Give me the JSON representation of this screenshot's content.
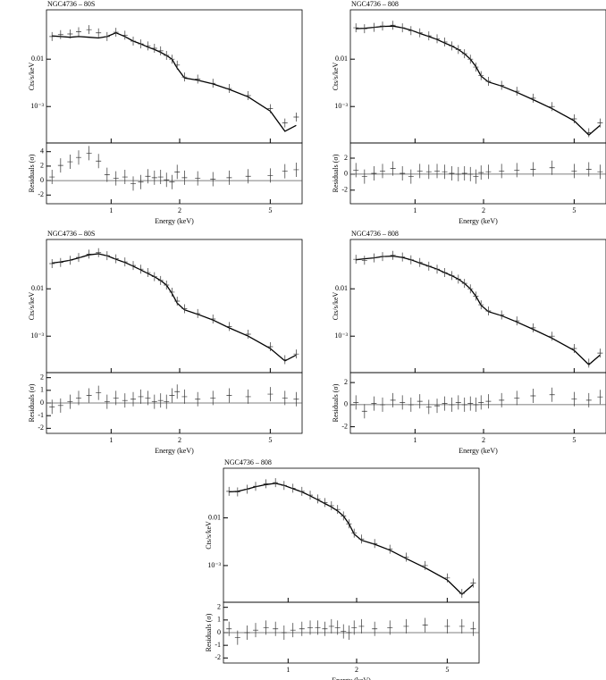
{
  "chart_data": [
    {
      "type": "spectrum",
      "title": "NGC4736 – 80S",
      "xlabel": "Energy (keV)",
      "ylabel": "Cts/s/keV",
      "residual_ylabel": "Residuals (σ)",
      "xlog": true,
      "ylog": true,
      "xlim": [
        0.52,
        6.9
      ],
      "xticks": [
        1,
        2,
        5
      ],
      "ylim": [
        0.00017,
        0.11
      ],
      "yticks": [
        {
          "value": 0.001,
          "label": "10⁻³"
        },
        0.01
      ],
      "residual_ylim": [
        -3.2,
        5.2
      ],
      "residual_yticks": [
        -2,
        0,
        2,
        4
      ],
      "x": [
        0.55,
        0.6,
        0.66,
        0.72,
        0.8,
        0.88,
        0.96,
        1.05,
        1.15,
        1.25,
        1.35,
        1.45,
        1.55,
        1.65,
        1.75,
        1.85,
        1.95,
        2.1,
        2.4,
        2.8,
        3.3,
        4.0,
        5.0,
        5.8,
        6.5
      ],
      "counts": [
        0.03,
        0.033,
        0.034,
        0.038,
        0.042,
        0.036,
        0.03,
        0.037,
        0.032,
        0.024,
        0.021,
        0.019,
        0.017,
        0.015,
        0.012,
        0.01,
        0.0075,
        0.0042,
        0.0038,
        0.0031,
        0.0024,
        0.0017,
        0.0009,
        0.00045,
        0.0006
      ],
      "model": [
        0.031,
        0.03,
        0.029,
        0.03,
        0.029,
        0.028,
        0.03,
        0.036,
        0.03,
        0.024,
        0.021,
        0.018,
        0.016,
        0.014,
        0.012,
        0.01,
        0.0065,
        0.004,
        0.0036,
        0.003,
        0.0023,
        0.0016,
        0.0008,
        0.0003,
        0.0004
      ],
      "residuals": [
        0.5,
        2.1,
        2.6,
        3.2,
        3.8,
        2.7,
        0.8,
        0.3,
        0.5,
        -0.4,
        -0.2,
        0.6,
        0.4,
        0.5,
        0.1,
        -0.2,
        1.2,
        0.4,
        0.3,
        0.2,
        0.4,
        0.6,
        0.7,
        1.3,
        1.5
      ]
    },
    {
      "type": "spectrum",
      "title": "NGC4736 – 808",
      "xlabel": "Energy (keV)",
      "ylabel": "Cts/s/keV",
      "residual_ylabel": "Residuals (σ)",
      "xlog": true,
      "ylog": true,
      "xlim": [
        0.52,
        6.9
      ],
      "xticks": [
        1,
        2,
        5
      ],
      "ylim": [
        0.00017,
        0.11
      ],
      "yticks": [
        {
          "value": 0.001,
          "label": "10⁻³"
        },
        0.01
      ],
      "residual_ylim": [
        -3.7,
        3.9
      ],
      "residual_yticks": [
        -2,
        0,
        2
      ],
      "x": [
        0.55,
        0.6,
        0.66,
        0.72,
        0.8,
        0.88,
        0.96,
        1.05,
        1.15,
        1.25,
        1.35,
        1.45,
        1.55,
        1.65,
        1.75,
        1.85,
        1.95,
        2.1,
        2.4,
        2.8,
        3.3,
        4.0,
        5.0,
        5.8,
        6.5
      ],
      "counts": [
        0.046,
        0.044,
        0.047,
        0.05,
        0.052,
        0.046,
        0.04,
        0.036,
        0.031,
        0.027,
        0.023,
        0.019,
        0.016,
        0.013,
        0.01,
        0.0068,
        0.0045,
        0.0034,
        0.0028,
        0.0021,
        0.0015,
        0.001,
        0.00055,
        0.00028,
        0.00045
      ],
      "model": [
        0.044,
        0.045,
        0.047,
        0.049,
        0.05,
        0.046,
        0.041,
        0.035,
        0.03,
        0.026,
        0.022,
        0.019,
        0.016,
        0.013,
        0.01,
        0.007,
        0.0044,
        0.0033,
        0.0027,
        0.002,
        0.0014,
        0.0009,
        0.0005,
        0.00025,
        0.0004
      ],
      "residuals": [
        0.5,
        -0.3,
        0.1,
        0.4,
        0.7,
        0.1,
        -0.3,
        0.4,
        0.3,
        0.4,
        0.3,
        0.1,
        0,
        0.1,
        0,
        -0.3,
        0.2,
        0.3,
        0.4,
        0.5,
        0.6,
        0.8,
        0.4,
        0.6,
        0.3
      ]
    },
    {
      "type": "spectrum",
      "title": "NGC4736 – 80S",
      "xlabel": "Energy (keV)",
      "ylabel": "Cts/s/keV",
      "residual_ylabel": "Residuals (σ)",
      "xlog": true,
      "ylog": true,
      "xlim": [
        0.52,
        6.9
      ],
      "xticks": [
        1,
        2,
        5
      ],
      "ylim": [
        0.00017,
        0.11
      ],
      "yticks": [
        {
          "value": 0.001,
          "label": "10⁻³"
        },
        0.01
      ],
      "residual_ylim": [
        -2.4,
        2.4
      ],
      "residual_yticks": [
        -2,
        -1,
        0,
        1,
        2
      ],
      "x": [
        0.55,
        0.6,
        0.66,
        0.72,
        0.8,
        0.88,
        0.96,
        1.05,
        1.15,
        1.25,
        1.35,
        1.45,
        1.55,
        1.65,
        1.75,
        1.85,
        1.95,
        2.1,
        2.4,
        2.8,
        3.3,
        4.0,
        5.0,
        5.8,
        6.5
      ],
      "counts": [
        0.034,
        0.036,
        0.04,
        0.046,
        0.054,
        0.058,
        0.05,
        0.043,
        0.037,
        0.031,
        0.026,
        0.022,
        0.018,
        0.015,
        0.012,
        0.0085,
        0.0055,
        0.0038,
        0.003,
        0.0023,
        0.0016,
        0.0011,
        0.0006,
        0.00032,
        0.00042
      ],
      "model": [
        0.035,
        0.037,
        0.04,
        0.045,
        0.052,
        0.055,
        0.05,
        0.042,
        0.036,
        0.03,
        0.025,
        0.021,
        0.018,
        0.015,
        0.012,
        0.008,
        0.005,
        0.0036,
        0.0029,
        0.0022,
        0.0015,
        0.001,
        0.00055,
        0.0003,
        0.0004
      ],
      "residuals": [
        -0.3,
        -0.2,
        0.1,
        0.4,
        0.6,
        0.8,
        0.1,
        0.4,
        0.2,
        0.3,
        0.5,
        0.4,
        0.1,
        0.2,
        0.1,
        0.6,
        0.9,
        0.5,
        0.3,
        0.4,
        0.6,
        0.5,
        0.7,
        0.4,
        0.3
      ]
    },
    {
      "type": "spectrum",
      "title": "NGC4736 – 808",
      "xlabel": "Energy (keV)",
      "ylabel": "Cts/s/keV",
      "residual_ylabel": "Residuals (σ)",
      "xlog": true,
      "ylog": true,
      "xlim": [
        0.52,
        6.9
      ],
      "xticks": [
        1,
        2,
        5
      ],
      "ylim": [
        0.00017,
        0.11
      ],
      "yticks": [
        {
          "value": 0.001,
          "label": "10⁻³"
        },
        0.01
      ],
      "residual_ylim": [
        -2.6,
        2.9
      ],
      "residual_yticks": [
        -2,
        0,
        2
      ],
      "x": [
        0.55,
        0.6,
        0.66,
        0.72,
        0.8,
        0.88,
        0.96,
        1.05,
        1.15,
        1.25,
        1.35,
        1.45,
        1.55,
        1.65,
        1.75,
        1.85,
        1.95,
        2.1,
        2.4,
        2.8,
        3.3,
        4.0,
        5.0,
        5.8,
        6.5
      ],
      "counts": [
        0.042,
        0.04,
        0.045,
        0.048,
        0.051,
        0.047,
        0.041,
        0.036,
        0.03,
        0.026,
        0.022,
        0.019,
        0.016,
        0.013,
        0.01,
        0.007,
        0.0046,
        0.0034,
        0.0028,
        0.0021,
        0.0015,
        0.001,
        0.00055,
        0.00027,
        0.00044
      ],
      "model": [
        0.041,
        0.043,
        0.045,
        0.048,
        0.049,
        0.046,
        0.041,
        0.035,
        0.03,
        0.026,
        0.022,
        0.019,
        0.016,
        0.013,
        0.01,
        0.007,
        0.0045,
        0.0033,
        0.0027,
        0.002,
        0.0014,
        0.0009,
        0.0005,
        0.00025,
        0.0004
      ],
      "residuals": [
        0.2,
        -0.6,
        0.1,
        0,
        0.4,
        0.2,
        0,
        0.3,
        -0.2,
        -0.1,
        0.1,
        0,
        0.2,
        0,
        0.1,
        0,
        0.2,
        0.3,
        0.4,
        0.6,
        0.8,
        0.9,
        0.5,
        0.4,
        0.7
      ]
    },
    {
      "type": "spectrum",
      "title": "NGC4736 – 808",
      "xlabel": "Energy (keV)",
      "ylabel": "Cts/s/keV",
      "residual_ylabel": "Residuals (σ)",
      "xlog": true,
      "ylog": true,
      "xlim": [
        0.52,
        6.9
      ],
      "xticks": [
        1,
        2,
        5
      ],
      "ylim": [
        0.00017,
        0.11
      ],
      "yticks": [
        {
          "value": 0.001,
          "label": "10⁻³"
        },
        0.01
      ],
      "residual_ylim": [
        -2.4,
        2.4
      ],
      "residual_yticks": [
        -2,
        -1,
        0,
        1,
        2
      ],
      "x": [
        0.55,
        0.6,
        0.66,
        0.72,
        0.8,
        0.88,
        0.96,
        1.05,
        1.15,
        1.25,
        1.35,
        1.45,
        1.55,
        1.65,
        1.75,
        1.85,
        1.95,
        2.1,
        2.4,
        2.8,
        3.3,
        4.0,
        5.0,
        5.8,
        6.5
      ],
      "counts": [
        0.036,
        0.035,
        0.04,
        0.046,
        0.052,
        0.055,
        0.048,
        0.042,
        0.036,
        0.03,
        0.025,
        0.021,
        0.018,
        0.015,
        0.011,
        0.0075,
        0.0048,
        0.0036,
        0.0029,
        0.0022,
        0.0015,
        0.001,
        0.00055,
        0.00026,
        0.00043
      ],
      "model": [
        0.035,
        0.036,
        0.04,
        0.045,
        0.05,
        0.053,
        0.048,
        0.041,
        0.035,
        0.029,
        0.024,
        0.02,
        0.017,
        0.014,
        0.011,
        0.0075,
        0.0046,
        0.0034,
        0.0028,
        0.0021,
        0.0014,
        0.0009,
        0.0005,
        0.00025,
        0.0004
      ],
      "residuals": [
        0.3,
        -0.4,
        0,
        0.2,
        0.4,
        0.3,
        0,
        0.2,
        0.3,
        0.4,
        0.4,
        0.3,
        0.5,
        0.4,
        0.1,
        0,
        0.4,
        0.5,
        0.3,
        0.4,
        0.5,
        0.6,
        0.5,
        0.5,
        0.3
      ]
    }
  ]
}
